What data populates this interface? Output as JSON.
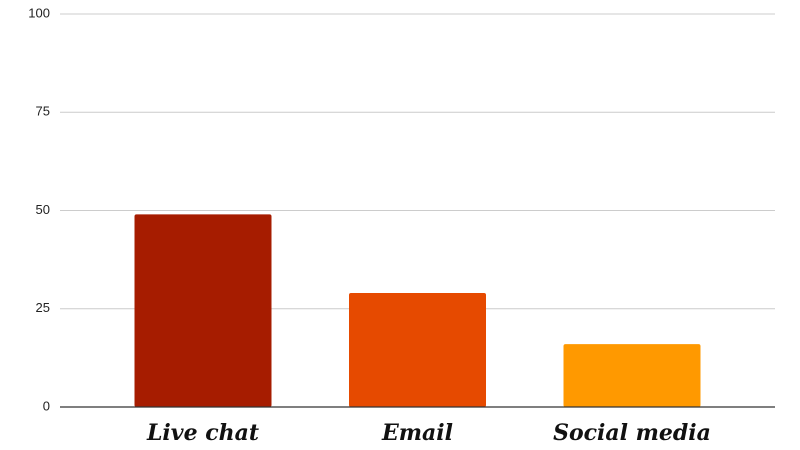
{
  "chart_data": {
    "type": "bar",
    "categories": [
      "Live chat",
      "Email",
      "Social media"
    ],
    "values": [
      49,
      29,
      16
    ],
    "colors": [
      "#a61c00",
      "#e64a00",
      "#ff9900"
    ],
    "ylim": [
      0,
      100
    ],
    "yticks": [
      0,
      25,
      50,
      75,
      100
    ],
    "grid": true
  }
}
